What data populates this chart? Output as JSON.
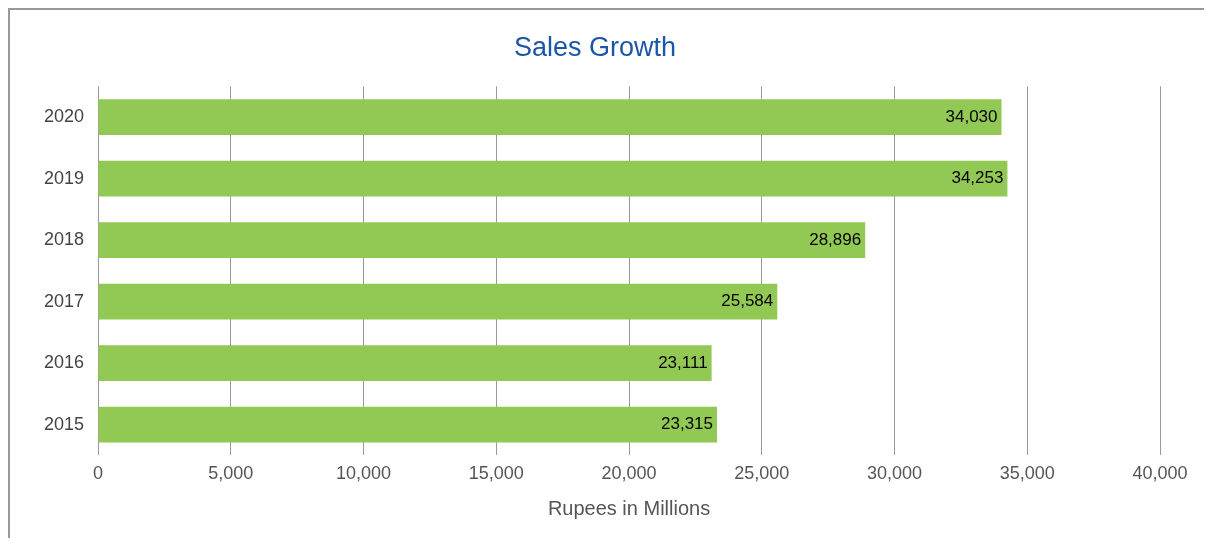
{
  "chart_data": {
    "type": "bar",
    "orientation": "horizontal",
    "title": "Sales Growth",
    "xlabel": "Rupees in Millions",
    "categories": [
      "2020",
      "2019",
      "2018",
      "2017",
      "2016",
      "2015"
    ],
    "values": [
      34030,
      34253,
      28896,
      25584,
      23111,
      23315
    ],
    "color": "#92c955",
    "xlim": [
      0,
      40000
    ],
    "xticks": [
      {
        "value": 0,
        "label": "0"
      },
      {
        "value": 5000,
        "label": "5,000"
      },
      {
        "value": 10000,
        "label": "10,000"
      },
      {
        "value": 15000,
        "label": "15,000"
      },
      {
        "value": 20000,
        "label": "20,000"
      },
      {
        "value": 25000,
        "label": "25,000"
      },
      {
        "value": 30000,
        "label": "30,000"
      },
      {
        "value": 35000,
        "label": "35,000"
      },
      {
        "value": 40000,
        "label": "40,000"
      }
    ],
    "value_labels": [
      "34,030",
      "34,253",
      "28,896",
      "25,584",
      "23,111",
      "23,315"
    ],
    "grid": "x",
    "legend": false
  }
}
